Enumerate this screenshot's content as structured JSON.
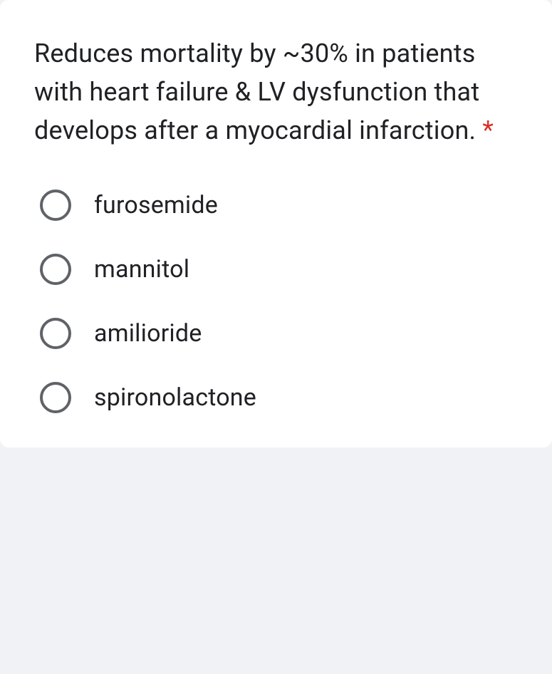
{
  "question": {
    "text": "Reduces mortality by ~30% in patients with heart failure & LV dysfunction that develops after a myocardial infarction. ",
    "required_marker": "*",
    "text_color": "#202124",
    "asterisk_color": "#d93025",
    "font_size": 36
  },
  "options": [
    {
      "label": "furosemide",
      "selected": false
    },
    {
      "label": "mannitol",
      "selected": false
    },
    {
      "label": "amilioride",
      "selected": false
    },
    {
      "label": "spironolactone",
      "selected": false
    }
  ],
  "styling": {
    "card_background": "#ffffff",
    "page_background": "#f0f2f5",
    "radio_border_color": "#5f6368",
    "radio_size": 44,
    "radio_border_width": 4,
    "option_font_size": 34,
    "option_text_color": "#202124",
    "card_border_radius": 12
  }
}
